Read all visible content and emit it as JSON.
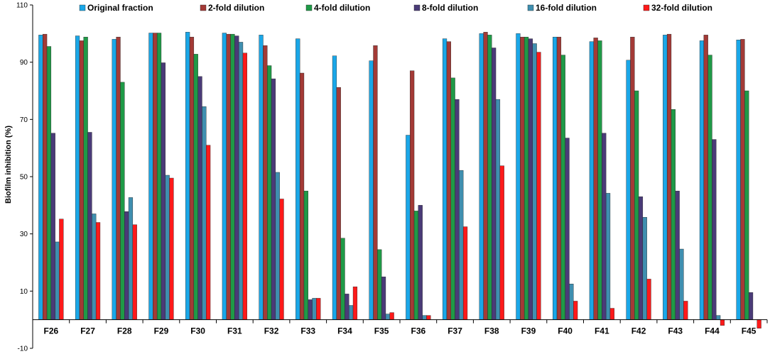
{
  "chart_data": {
    "type": "bar",
    "title": "",
    "xlabel": "",
    "ylabel": "Biofilm inhibition (%)",
    "ylim": [
      -10,
      110
    ],
    "yticks": [
      -10,
      10,
      30,
      50,
      70,
      90,
      110
    ],
    "grid": false,
    "legend_position": "top",
    "categories": [
      "F26",
      "F27",
      "F28",
      "F29",
      "F30",
      "F31",
      "F32",
      "F33",
      "F34",
      "F35",
      "F36",
      "F37",
      "F38",
      "F39",
      "F40",
      "F41",
      "F42",
      "F43",
      "F44",
      "F45"
    ],
    "series": [
      {
        "name": "Original fraction",
        "color": "#1aa7e8",
        "values": [
          99.5,
          99.2,
          98.0,
          100.2,
          100.5,
          100.2,
          99.5,
          98.2,
          92.2,
          90.5,
          64.5,
          98.2,
          100.0,
          100.0,
          98.8,
          97.2,
          90.7,
          99.5,
          97.5,
          97.8
        ]
      },
      {
        "name": "2-fold  dilution",
        "color": "#a33a36",
        "values": [
          99.8,
          97.5,
          98.8,
          100.2,
          98.8,
          99.8,
          95.8,
          86.2,
          81.2,
          95.8,
          87.0,
          97.2,
          100.5,
          98.8,
          98.8,
          98.5,
          98.8,
          99.8,
          99.5,
          98.0
        ]
      },
      {
        "name": "4-fold  dilution",
        "color": "#1f9a47",
        "values": [
          95.5,
          98.8,
          83.0,
          100.2,
          92.8,
          99.8,
          88.8,
          45.0,
          28.5,
          24.5,
          38.0,
          84.5,
          99.5,
          98.8,
          92.5,
          97.5,
          80.0,
          73.5,
          92.5,
          80.0
        ]
      },
      {
        "name": "8-fold  dilution",
        "color": "#4a3b78",
        "values": [
          65.2,
          65.5,
          37.8,
          89.8,
          85.0,
          99.2,
          84.2,
          7.0,
          9.0,
          15.0,
          40.0,
          77.0,
          95.0,
          98.2,
          63.5,
          65.2,
          43.0,
          45.0,
          63.0,
          9.5
        ]
      },
      {
        "name": "16-fold  dilution",
        "color": "#3f8fb0",
        "values": [
          27.2,
          37.0,
          42.7,
          50.5,
          74.5,
          97.0,
          51.5,
          7.5,
          5.0,
          2.0,
          1.5,
          52.2,
          77.0,
          96.5,
          12.5,
          44.2,
          35.8,
          24.7,
          1.5,
          0.0
        ]
      },
      {
        "name": "32-fold  dilution",
        "color": "#ff1a1a",
        "values": [
          35.2,
          34.0,
          33.2,
          49.5,
          61.0,
          93.2,
          42.2,
          7.5,
          11.5,
          2.5,
          1.5,
          32.5,
          53.8,
          93.5,
          6.5,
          4.0,
          14.2,
          6.5,
          -2.0,
          -3.0
        ]
      }
    ]
  }
}
